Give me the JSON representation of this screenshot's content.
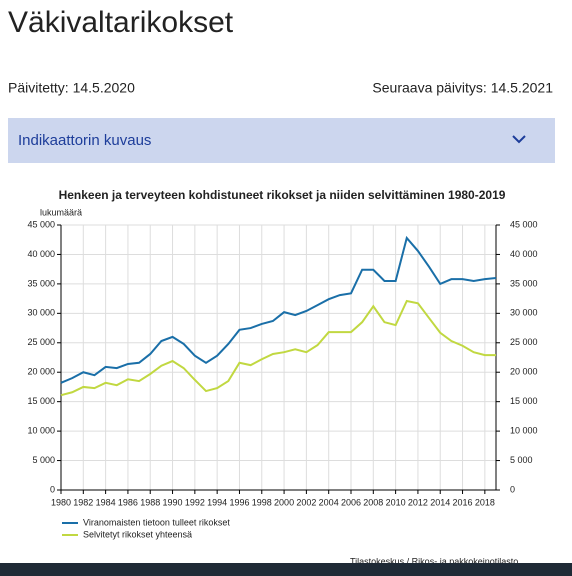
{
  "header": {
    "title": "Väkivaltarikokset",
    "updated": "Päivitetty: 14.5.2020",
    "next_update": "Seuraava päivitys: 14.5.2021"
  },
  "accordion": {
    "label": "Indikaattorin kuvaus"
  },
  "chart_data": {
    "type": "line",
    "title": "Henkeen ja terveyteen kohdistuneet rikokset ja niiden selvittäminen 1980-2019",
    "y_label": "lukumäärä",
    "source": "Tilastokeskus / Rikos- ja pakkokeinotilasto",
    "x": [
      1980,
      1981,
      1982,
      1983,
      1984,
      1985,
      1986,
      1987,
      1988,
      1989,
      1990,
      1991,
      1992,
      1993,
      1994,
      1995,
      1996,
      1997,
      1998,
      1999,
      2000,
      2001,
      2002,
      2003,
      2004,
      2005,
      2006,
      2007,
      2008,
      2009,
      2010,
      2011,
      2012,
      2013,
      2014,
      2015,
      2016,
      2017,
      2018,
      2019
    ],
    "xlim": [
      1980,
      2019
    ],
    "xticks": [
      1980,
      1982,
      1984,
      1986,
      1988,
      1990,
      1992,
      1994,
      1996,
      1998,
      2000,
      2002,
      2004,
      2006,
      2008,
      2010,
      2012,
      2014,
      2016,
      2018
    ],
    "ylim": [
      0,
      45000
    ],
    "yticks": [
      {
        "value": 0,
        "label": "0"
      },
      {
        "value": 5000,
        "label": "5 000"
      },
      {
        "value": 10000,
        "label": "10 000"
      },
      {
        "value": 15000,
        "label": "15 000"
      },
      {
        "value": 20000,
        "label": "20 000"
      },
      {
        "value": 25000,
        "label": "25 000"
      },
      {
        "value": 30000,
        "label": "30 000"
      },
      {
        "value": 35000,
        "label": "35 000"
      },
      {
        "value": 40000,
        "label": "40 000"
      },
      {
        "value": 45000,
        "label": "45 000"
      }
    ],
    "y2lim": [
      0,
      45000
    ],
    "y2ticks": [
      {
        "value": 0,
        "label": "0"
      },
      {
        "value": 5000,
        "label": "5 000"
      },
      {
        "value": 10000,
        "label": "10 000"
      },
      {
        "value": 15000,
        "label": "15 000"
      },
      {
        "value": 20000,
        "label": "20 000"
      },
      {
        "value": 25000,
        "label": "25 000"
      },
      {
        "value": 30000,
        "label": "30 000"
      },
      {
        "value": 35000,
        "label": "35 000"
      },
      {
        "value": 40000,
        "label": "40 000"
      },
      {
        "value": 45000,
        "label": "45 000"
      }
    ],
    "grid": true,
    "legend": "bottom-left",
    "series": [
      {
        "name": "Viranomaisten tietoon tulleet rikokset",
        "color": "#1a6fa8",
        "values": [
          18200,
          19000,
          20000,
          19500,
          20900,
          20700,
          21400,
          21600,
          23100,
          25300,
          26000,
          24800,
          22800,
          21600,
          22800,
          24800,
          27200,
          27500,
          28200,
          28700,
          30200,
          29700,
          30400,
          31400,
          32400,
          33100,
          33400,
          37400,
          37400,
          35500,
          35500,
          42800,
          40600,
          37900,
          35000,
          35800,
          35800,
          35500,
          35800,
          36000
        ]
      },
      {
        "name": "Selvitetyt rikokset yhteensä",
        "color": "#c1d841",
        "values": [
          16100,
          16600,
          17500,
          17300,
          18200,
          17800,
          18800,
          18500,
          19700,
          21100,
          21900,
          20700,
          18700,
          16800,
          17300,
          18500,
          21600,
          21200,
          22200,
          23100,
          23400,
          23900,
          23400,
          24600,
          26800,
          26800,
          26800,
          28500,
          31200,
          28500,
          28000,
          32100,
          31700,
          29200,
          26700,
          25300,
          24500,
          23400,
          22900,
          22900
        ]
      }
    ]
  }
}
